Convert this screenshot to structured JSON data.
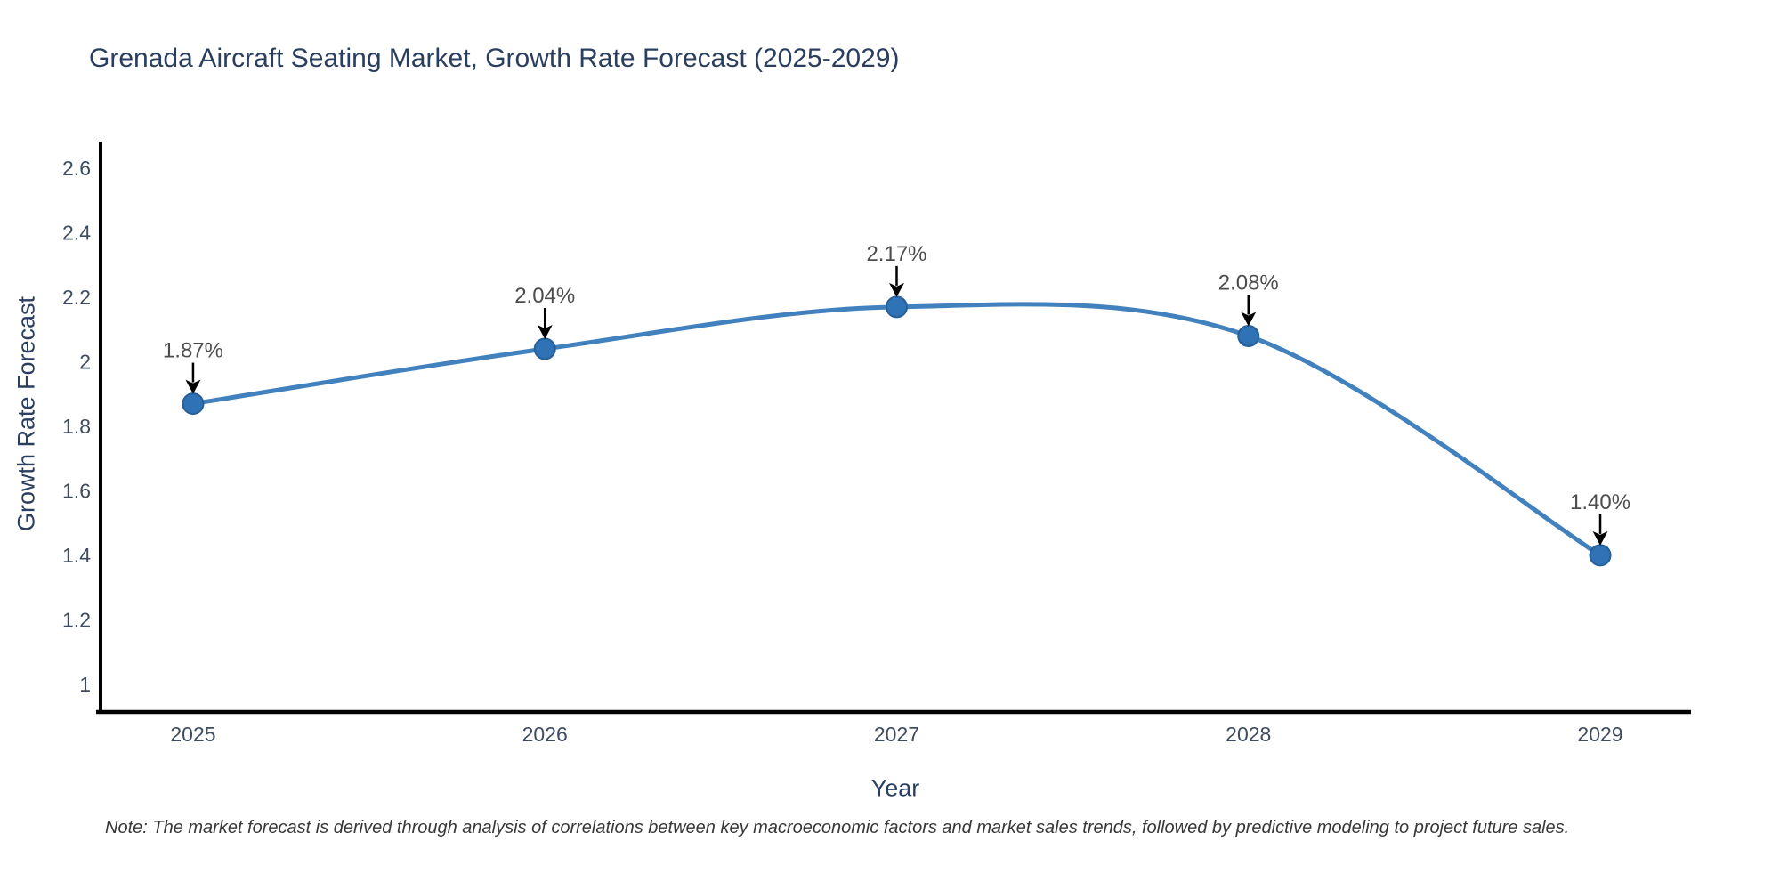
{
  "title": "Grenada Aircraft Seating Market, Growth Rate Forecast (2025-2029)",
  "note": "Note: The market forecast is derived through analysis of correlations between key macroeconomic factors and market sales trends, followed by predictive modeling to project future sales.",
  "chart_data": {
    "type": "line",
    "title": "Grenada Aircraft Seating Market, Growth Rate Forecast (2025-2029)",
    "xlabel": "Year",
    "ylabel": "Growth Rate Forecast",
    "x": [
      2025,
      2026,
      2027,
      2028,
      2029
    ],
    "xtick_labels": [
      "2025",
      "2026",
      "2027",
      "2028",
      "2029"
    ],
    "series": [
      {
        "name": "Growth Rate Forecast",
        "values": [
          1.87,
          2.04,
          2.17,
          2.08,
          1.4
        ]
      }
    ],
    "point_labels": [
      "1.87%",
      "2.04%",
      "2.17%",
      "2.08%",
      "1.40%"
    ],
    "ytick_values": [
      1,
      1.2,
      1.4,
      1.6,
      1.8,
      2,
      2.2,
      2.4,
      2.6
    ],
    "ytick_labels": [
      "1",
      "1.2",
      "1.4",
      "1.6",
      "1.8",
      "2",
      "2.2",
      "2.4",
      "2.6"
    ],
    "xlim": [
      2024.737,
      2029.258
    ],
    "ylim": [
      0.914,
      2.683
    ],
    "grid": false,
    "legend": "none",
    "line_shape": "spline",
    "marker": "circle",
    "colors": {
      "line": "#4181BE",
      "marker": "#2F72B5",
      "marker_edge": "#275F98",
      "arrow": "#000000",
      "axis_line": "#000000",
      "title": "#2a3f5f",
      "tick": "#3e4c60",
      "annotation": "#4d4d4d",
      "background": "#ffffff"
    }
  }
}
